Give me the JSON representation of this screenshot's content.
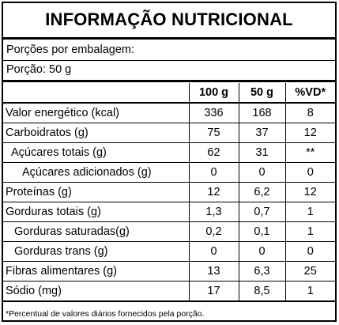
{
  "title": "INFORMAÇÃO NUTRICIONAL",
  "servings_per_package": "Porções por embalagem:",
  "serving_size": "Porção: 50 g",
  "columns": [
    "100 g",
    "50 g",
    "%VD*"
  ],
  "rows": [
    {
      "name": "Valor energético (kcal)",
      "v100": "336",
      "v50": "168",
      "vd": "8"
    },
    {
      "name": "Carboidratos (g)",
      "v100": "75",
      "v50": "37",
      "vd": "12"
    },
    {
      "name": "Açúcares totais (g)",
      "v100": "62",
      "v50": "31",
      "vd": "**"
    },
    {
      "name": "Açúcares adicionados (g)",
      "v100": "0",
      "v50": "0",
      "vd": "0"
    },
    {
      "name": "Proteínas (g)",
      "v100": "12",
      "v50": "6,2",
      "vd": "12"
    },
    {
      "name": "Gorduras totais (g)",
      "v100": "1,3",
      "v50": "0,7",
      "vd": "1"
    },
    {
      "name": "Gorduras saturadas(g)",
      "v100": "0,2",
      "v50": "0,1",
      "vd": "1"
    },
    {
      "name": "Gorduras trans (g)",
      "v100": "0",
      "v50": "0",
      "vd": "0"
    },
    {
      "name": "Fibras alimentares (g)",
      "v100": "13",
      "v50": "6,3",
      "vd": "25"
    },
    {
      "name": "Sódio (mg)",
      "v100": "17",
      "v50": "8,5",
      "vd": "1"
    }
  ],
  "footnote": "*Percentual de valores diários fornecidos pela porção."
}
